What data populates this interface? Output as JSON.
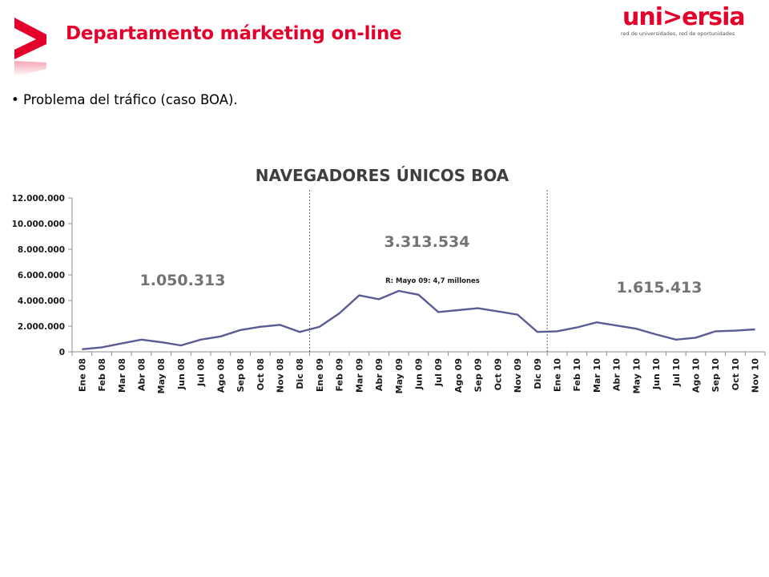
{
  "header": {
    "title": "Departamento márketing on-line",
    "logo_text": "uni>ersia",
    "logo_tagline": "red de universidades, red de oportunidades"
  },
  "bullet": {
    "text": "• Problema del tráfico (caso BOA)."
  },
  "colors": {
    "brand_red": "#e4002b",
    "series_line": "#5b5b95",
    "divider": "#5b5b95"
  },
  "chart_data": {
    "type": "line",
    "title": "NAVEGADORES ÚNICOS BOA",
    "categories": [
      "Ene 08",
      "Feb 08",
      "Mar 08",
      "Abr 08",
      "May 08",
      "Jun 08",
      "Jul 08",
      "Ago 08",
      "Sep 08",
      "Oct 08",
      "Nov 08",
      "Dic 08",
      "Ene 09",
      "Feb 09",
      "Mar 09",
      "Abr 09",
      "May 09",
      "Jun 09",
      "Jul 09",
      "Ago 09",
      "Sep 09",
      "Oct 09",
      "Nov 09",
      "Dic 09",
      "Ene 10",
      "Feb 10",
      "Mar 10",
      "Abr 10",
      "May 10",
      "Jun 10",
      "Jul 10",
      "Ago 10",
      "Sep 10",
      "Oct 10",
      "Nov 10"
    ],
    "values": [
      200000,
      350000,
      650000,
      950000,
      750000,
      500000,
      950000,
      1200000,
      1700000,
      1950000,
      2100000,
      1550000,
      1950000,
      3000000,
      4400000,
      4100000,
      4750000,
      4450000,
      3100000,
      3250000,
      3400000,
      3150000,
      2900000,
      1550000,
      1600000,
      1900000,
      2300000,
      2050000,
      1800000,
      1350000,
      950000,
      1100000,
      1600000,
      1650000,
      1750000
    ],
    "ylim": [
      0,
      12000000
    ],
    "yticks": [
      "0",
      "2.000.000",
      "4.000.000",
      "6.000.000",
      "8.000.000",
      "10.000.000",
      "12.000.000"
    ],
    "xlabel": "",
    "ylabel": "",
    "grid": false,
    "period_dividers_after": [
      "Dic 08",
      "Dic 09"
    ],
    "annotations": {
      "period_2008": "1.050.313",
      "period_2009": "3.313.534",
      "period_2010": "1.615.413",
      "peak_note": "R: Mayo  09: 4,7 millones"
    }
  }
}
